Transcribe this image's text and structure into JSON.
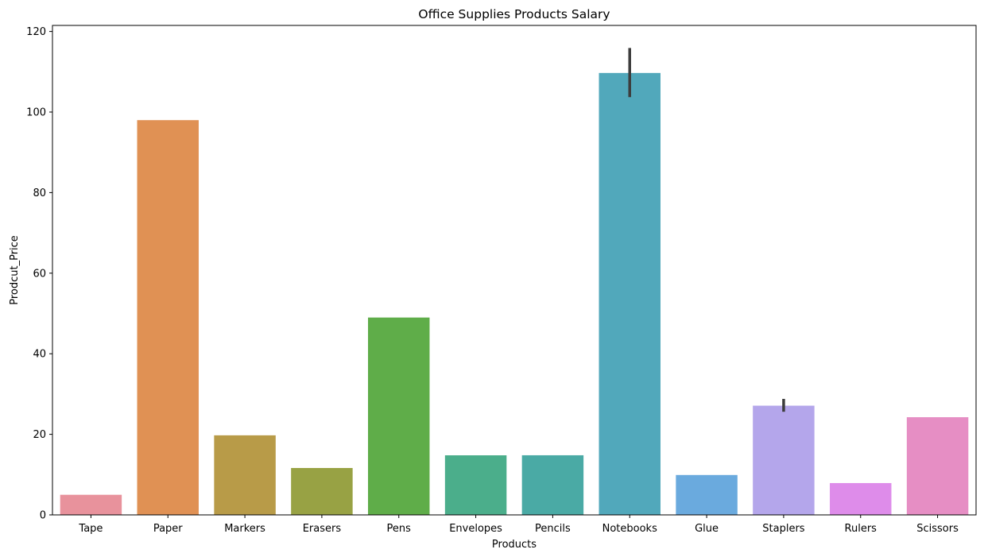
{
  "chart_data": {
    "type": "bar",
    "title": "Office Supplies Products Salary",
    "xlabel": "Products",
    "ylabel": "Prodcut_Price",
    "ylim": [
      0,
      121.5
    ],
    "yticks": [
      0,
      20,
      40,
      60,
      80,
      100,
      120
    ],
    "grid": false,
    "categories": [
      "Tape",
      "Paper",
      "Markers",
      "Erasers",
      "Pens",
      "Envelopes",
      "Pencils",
      "Notebooks",
      "Glue",
      "Staplers",
      "Rulers",
      "Scissors"
    ],
    "values": [
      4.99,
      97.99,
      19.75,
      11.64,
      48.99,
      14.79,
      14.8,
      109.7,
      9.9,
      27.11,
      7.9,
      24.25
    ],
    "error_bars": [
      null,
      null,
      null,
      null,
      null,
      null,
      null,
      [
        103.7,
        115.9
      ],
      null,
      [
        25.6,
        28.8
      ],
      null,
      null
    ],
    "colors": [
      "#e8929c",
      "#e09154",
      "#b89b48",
      "#98a244",
      "#5fad49",
      "#4bae8b",
      "#4aaaa5",
      "#51a8bb",
      "#6aaade",
      "#b4a6eb",
      "#de8cea",
      "#e68ec4"
    ]
  }
}
